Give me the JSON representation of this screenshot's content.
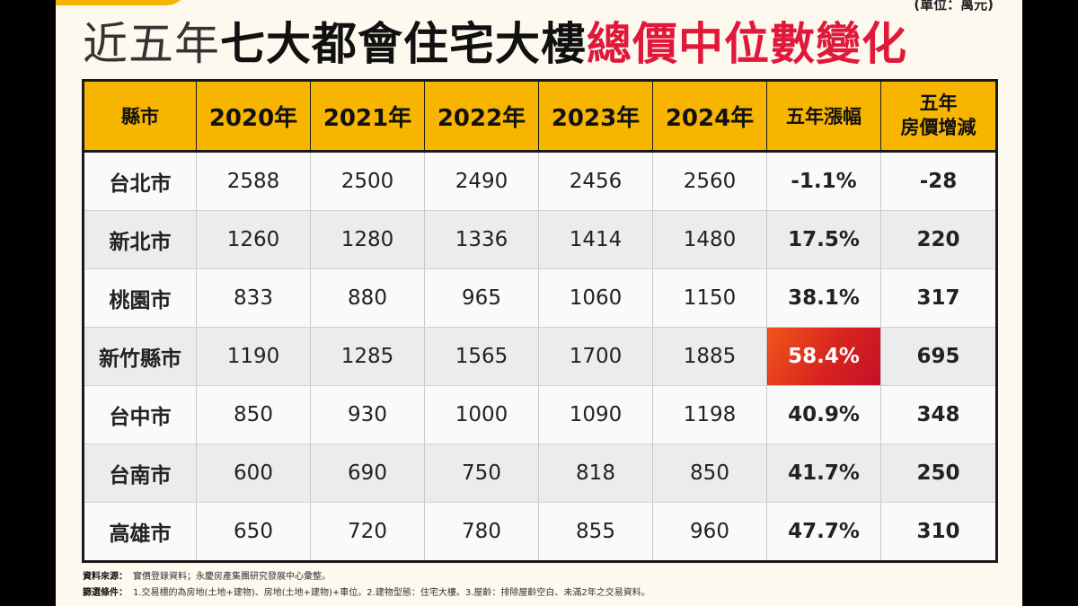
{
  "title": {
    "part1": "近五年",
    "part2": "七大都會住宅大樓",
    "part3": "總價中位數變化"
  },
  "unit": "(單位：萬元)",
  "chart_data": {
    "type": "table",
    "columns": [
      "縣市",
      "2020年",
      "2021年",
      "2022年",
      "2023年",
      "2024年",
      "五年漲幅",
      "五年房價增減"
    ],
    "rows": [
      {
        "city": "台北市",
        "values": [
          2588,
          2500,
          2490,
          2456,
          2560
        ],
        "growth": "-1.1%",
        "change": "-28"
      },
      {
        "city": "新北市",
        "values": [
          1260,
          1280,
          1336,
          1414,
          1480
        ],
        "growth": "17.5%",
        "change": "220"
      },
      {
        "city": "桃園市",
        "values": [
          833,
          880,
          965,
          1060,
          1150
        ],
        "growth": "38.1%",
        "change": "317"
      },
      {
        "city": "新竹縣市",
        "values": [
          1190,
          1285,
          1565,
          1700,
          1885
        ],
        "growth": "58.4%",
        "change": "695"
      },
      {
        "city": "台中市",
        "values": [
          850,
          930,
          1000,
          1090,
          1198
        ],
        "growth": "40.9%",
        "change": "348"
      },
      {
        "city": "台南市",
        "values": [
          600,
          690,
          750,
          818,
          850
        ],
        "growth": "41.7%",
        "change": "250"
      },
      {
        "city": "高雄市",
        "values": [
          650,
          720,
          780,
          855,
          960
        ],
        "growth": "47.7%",
        "change": "310"
      }
    ],
    "highlight_colors": {
      "header_bg": "#f7b500",
      "red_text": "#d7203f",
      "max_cell_bg": "#d8231f"
    }
  },
  "header": {
    "city": "縣市",
    "y2020": "2020年",
    "y2021": "2021年",
    "y2022": "2022年",
    "y2023": "2023年",
    "y2024": "2024年",
    "growth": "五年漲幅",
    "change_line1": "五年",
    "change_line2": "房價增減"
  },
  "footnotes": {
    "source_label": "資料來源：",
    "source_text": "實價登錄資料；永慶房產集團研究發展中心彙整。",
    "filter_label": "篩選條件：",
    "filter_text": "1.交易標的為房地(土地+建物)、房地(土地+建物)+車位。2.建物型態：住宅大樓。3.屋齡：排除屋齡空白、未滿2年之交易資料。"
  }
}
